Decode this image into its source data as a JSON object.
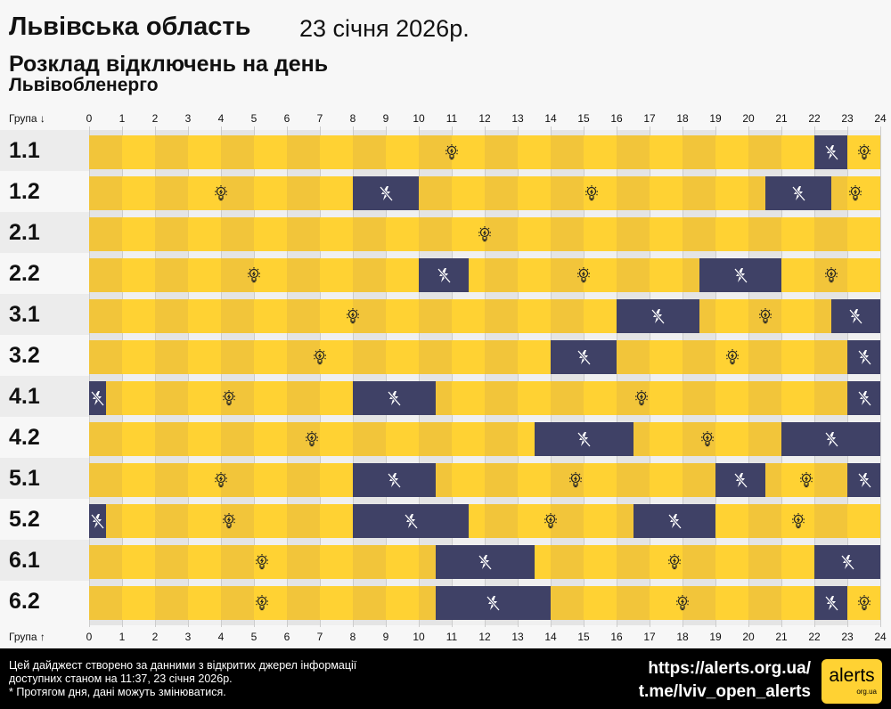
{
  "header": {
    "region": "Львівська область",
    "date": "23 січня 2026р.",
    "subtitle": "Розклад відключень на день",
    "provider": "Львівобленерго"
  },
  "chart_data": {
    "type": "timeline",
    "x_top_label": "Група ↓",
    "x_bottom_label": "Група ↑",
    "xlim": [
      0,
      24
    ],
    "ticks": [
      "0",
      "1",
      "2",
      "3",
      "4",
      "5",
      "6",
      "7",
      "8",
      "9",
      "10",
      "11",
      "12",
      "13",
      "14",
      "15",
      "16",
      "17",
      "18",
      "19",
      "20",
      "21",
      "22",
      "23",
      "24"
    ],
    "legend": {
      "power_on": "bulb-icon",
      "power_off": "no-power-icon"
    },
    "colors": {
      "on": "#ffd233",
      "on_alt": "#f2c53a",
      "off": "#3f4166"
    },
    "groups": [
      {
        "name": "1.1",
        "outages": [
          [
            22,
            23
          ]
        ]
      },
      {
        "name": "1.2",
        "outages": [
          [
            8,
            10
          ],
          [
            20.5,
            22.5
          ]
        ]
      },
      {
        "name": "2.1",
        "outages": []
      },
      {
        "name": "2.2",
        "outages": [
          [
            10,
            11.5
          ],
          [
            18.5,
            21
          ]
        ]
      },
      {
        "name": "3.1",
        "outages": [
          [
            16,
            18.5
          ],
          [
            22.5,
            24
          ]
        ]
      },
      {
        "name": "3.2",
        "outages": [
          [
            14,
            16
          ],
          [
            23,
            24
          ]
        ]
      },
      {
        "name": "4.1",
        "outages": [
          [
            0,
            0.5
          ],
          [
            8,
            10.5
          ],
          [
            23,
            24
          ]
        ]
      },
      {
        "name": "4.2",
        "outages": [
          [
            13.5,
            16.5
          ],
          [
            21,
            24
          ]
        ]
      },
      {
        "name": "5.1",
        "outages": [
          [
            8,
            10.5
          ],
          [
            19,
            20.5
          ],
          [
            23,
            24
          ]
        ]
      },
      {
        "name": "5.2",
        "outages": [
          [
            0,
            0.5
          ],
          [
            8,
            11.5
          ],
          [
            16.5,
            19
          ]
        ]
      },
      {
        "name": "6.1",
        "outages": [
          [
            10.5,
            13.5
          ],
          [
            22,
            24
          ]
        ]
      },
      {
        "name": "6.2",
        "outages": [
          [
            10.5,
            14
          ],
          [
            22,
            23
          ]
        ]
      }
    ]
  },
  "footer": {
    "line1": "Цей дайджест створено за данними з відкритих джерел інформації",
    "line2": "доступних станом на 11:37, 23 січня 2026р.",
    "line3": "* Протягом дня, дані можуть змінюватися.",
    "link1": "https://alerts.org.ua/",
    "link2": "t.me/lviv_open_alerts",
    "logo_main": "alerts",
    "logo_sub": "org.ua"
  }
}
